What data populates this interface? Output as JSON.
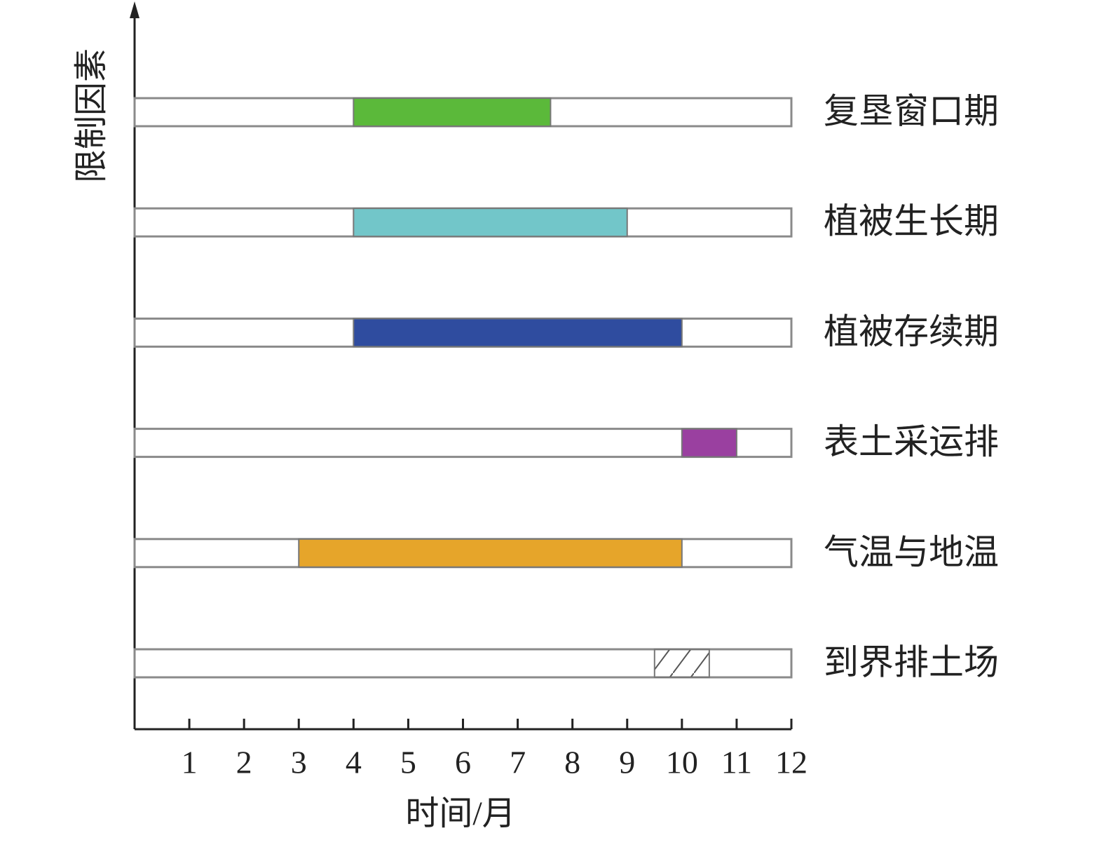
{
  "chart_data": {
    "type": "gantt",
    "ylabel": "限制因素",
    "xlabel": "时间/月",
    "categories": [
      "复垦窗口期",
      "植被生长期",
      "植被存续期",
      "表土采运排",
      "气温与地温",
      "到界排土场"
    ],
    "starts": [
      4,
      4,
      4,
      10,
      3,
      9.5
    ],
    "ends": [
      7.6,
      9,
      10,
      11,
      10,
      10.5
    ],
    "fills": [
      "#5bb93a",
      "#72c6c9",
      "#2f4c9f",
      "#9a40a0",
      "#e6a52a",
      "hatch"
    ],
    "xlim": [
      0,
      12
    ],
    "xticks": [
      1,
      2,
      3,
      4,
      5,
      6,
      7,
      8,
      9,
      10,
      11,
      12
    ]
  }
}
